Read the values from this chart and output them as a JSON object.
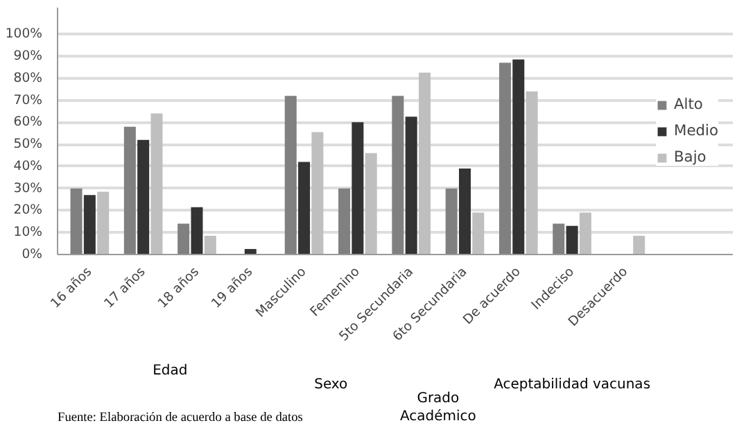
{
  "chart_data": {
    "type": "bar",
    "categories": [
      "16 años",
      "17 años",
      "18 años",
      "19 años",
      "Masculino",
      "Femenino",
      "5to Secundaria",
      "6to Secundaria",
      "De acuerdo",
      "Indeciso",
      "Desacuerdo"
    ],
    "series": [
      {
        "name": "Alto",
        "color": "#808080",
        "values": [
          30,
          58,
          14,
          0,
          72,
          30,
          72,
          30,
          87,
          14,
          0
        ]
      },
      {
        "name": "Medio",
        "color": "#333333",
        "values": [
          27,
          52,
          21.5,
          2.5,
          42,
          60,
          62.5,
          39,
          88.5,
          13,
          0
        ]
      },
      {
        "name": "Bajo",
        "color": "#bfbfbf",
        "values": [
          28.5,
          64,
          8.5,
          0,
          55.5,
          46,
          82.5,
          19,
          74,
          19,
          8.5
        ]
      }
    ],
    "ylim": [
      0,
      112
    ],
    "yticks": [
      {
        "value": 0,
        "label": "0%"
      },
      {
        "value": 10,
        "label": "10%"
      },
      {
        "value": 20,
        "label": "20%"
      },
      {
        "value": 30,
        "label": "30%"
      },
      {
        "value": 40,
        "label": "40%"
      },
      {
        "value": 50,
        "label": "50%"
      },
      {
        "value": 60,
        "label": "60%"
      },
      {
        "value": 70,
        "label": "70%"
      },
      {
        "value": 80,
        "label": "80%"
      },
      {
        "value": 90,
        "label": "90%"
      },
      {
        "value": 100,
        "label": "100%"
      }
    ],
    "grid": "y",
    "legend": "right",
    "annotations": [
      "Edad",
      "Sexo",
      "Grado\nAcadémico",
      "Aceptabilidad vacunas",
      "Fuente: Elaboración de acuerdo a base de datos"
    ]
  }
}
